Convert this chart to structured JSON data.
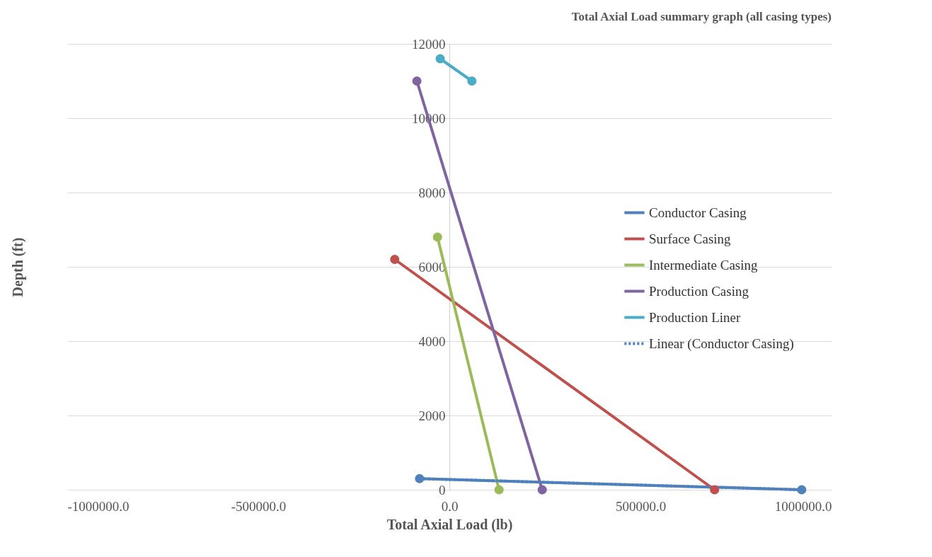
{
  "chart_data": {
    "type": "line",
    "title": "Total Axial Load summary graph (all casing types)",
    "xlabel": "Total Axial Load (lb)",
    "ylabel": "Depth (ft)",
    "xlim": [
      -1000000,
      1000000
    ],
    "xticks": [
      {
        "value": -1000000,
        "label": "-1000000.0"
      },
      {
        "value": -500000,
        "label": "-500000.0"
      },
      {
        "value": 0,
        "label": "0.0"
      },
      {
        "value": 500000,
        "label": "500000.0"
      },
      {
        "value": 1000000,
        "label": "1000000.0"
      }
    ],
    "ylim": [
      0,
      12000
    ],
    "yticks": [
      0,
      2000,
      4000,
      6000,
      8000,
      10000,
      12000
    ],
    "grid": "y",
    "legend": "right",
    "marker": "circle",
    "line_style": "solid",
    "series": [
      {
        "name": "Conductor Casing",
        "color": "#4f81bd",
        "x": [
          -78000,
          922000
        ],
        "values": [
          300,
          0
        ]
      },
      {
        "name": "Surface Casing",
        "color": "#c0504d",
        "x": [
          -143000,
          694000
        ],
        "values": [
          6200,
          0
        ]
      },
      {
        "name": "Intermediate Casing",
        "color": "#9bbb59",
        "x": [
          -31000,
          130000
        ],
        "values": [
          6800,
          0
        ]
      },
      {
        "name": "Production Casing",
        "color": "#8064a2",
        "x": [
          -85000,
          243000
        ],
        "values": [
          11000,
          0
        ]
      },
      {
        "name": "Production Liner",
        "color": "#4bacc6",
        "x": [
          -24000,
          59000
        ],
        "values": [
          11600,
          11000
        ]
      },
      {
        "name": "Linear (Conductor Casing)",
        "color": "#4f81bd",
        "type": "line",
        "marker": "none",
        "line_style": "dotted",
        "x": [
          -78000,
          922000
        ],
        "values": [
          300,
          0
        ]
      }
    ]
  }
}
